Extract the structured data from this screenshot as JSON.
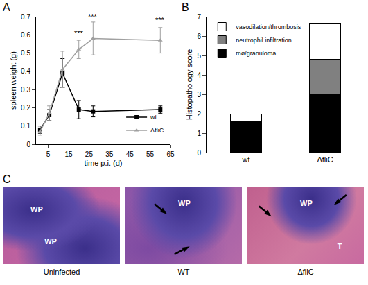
{
  "chart_data": [
    {
      "type": "line",
      "annotations": [
        {
          "text": "A"
        },
        {
          "text": "***",
          "x": 20,
          "y": 0.58
        },
        {
          "text": "***",
          "x": 27,
          "y": 0.67
        },
        {
          "text": "***",
          "x": 60,
          "y": 0.65
        }
      ],
      "x_label": "time p.i. (d)",
      "y_label": "spleen weight (g)",
      "x": [
        1,
        5.5,
        12,
        20,
        27,
        60
      ],
      "xlim": [
        -1,
        65
      ],
      "xticks": [
        5,
        15,
        25,
        35,
        45,
        55,
        65
      ],
      "ylim": [
        0,
        0.7
      ],
      "yticks": [
        0,
        0.1,
        0.2,
        0.3,
        0.4,
        0.5,
        0.6,
        0.7
      ],
      "grid": false,
      "legend": "lower right",
      "series": [
        {
          "name": "wt",
          "color": "#000000",
          "marker": "square",
          "values": [
            0.08,
            0.16,
            0.39,
            0.19,
            0.18,
            0.19
          ],
          "errors": [
            0.02,
            0.03,
            0.08,
            0.05,
            0.03,
            0.02
          ]
        },
        {
          "name": "ΔfliC",
          "color": "#a0a0a0",
          "marker": "triangle-up",
          "values": [
            0.07,
            0.17,
            0.41,
            0.52,
            0.58,
            0.57
          ],
          "errors": [
            0.02,
            0.04,
            0.1,
            0.05,
            0.09,
            0.07
          ]
        }
      ]
    },
    {
      "type": "bar",
      "stacked": true,
      "annotations": [
        {
          "text": "B"
        }
      ],
      "y_label": "Histopathology score",
      "categories": [
        "wt",
        "ΔfliC"
      ],
      "ylim": [
        0,
        7
      ],
      "yticks": [
        0,
        1,
        2,
        3,
        4,
        5,
        6,
        7
      ],
      "grid": false,
      "legend": "upper left",
      "series": [
        {
          "name": "mø/granuloma",
          "color": "#000000",
          "values": [
            1.6,
            3.0
          ]
        },
        {
          "name": "neutrophil infiltration",
          "color": "#808080",
          "values": [
            0,
            1.8
          ]
        },
        {
          "name": "vasodilation/thrombosis",
          "color": "#ffffff",
          "values": [
            0.4,
            1.85
          ]
        }
      ]
    }
  ],
  "panel_c": {
    "label": "C",
    "images": [
      {
        "caption": "Uninfected",
        "labels": [
          "WP",
          "WP"
        ]
      },
      {
        "caption": "WT",
        "labels": [
          "WP"
        ]
      },
      {
        "caption": "ΔfliC",
        "labels": [
          "WP",
          "T"
        ]
      }
    ]
  }
}
